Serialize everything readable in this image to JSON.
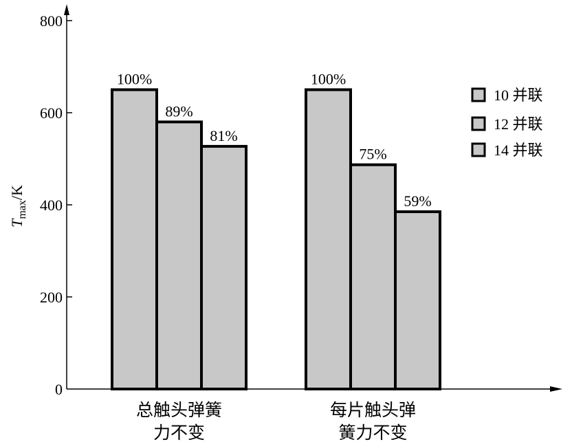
{
  "chart_data": {
    "type": "bar",
    "title": "",
    "xlabel": "",
    "ylabel": {
      "symbol": "T",
      "subscript": "max",
      "unit": "/K"
    },
    "ylim": [
      0,
      800
    ],
    "yticks": [
      "0",
      "200",
      "400",
      "600",
      "800"
    ],
    "grid": false,
    "legend_position": "right",
    "categories": [
      [
        "总触头弹簧",
        "力不变"
      ],
      [
        "每片触头弹",
        "簧力不变"
      ]
    ],
    "series": [
      {
        "name": "10 并联",
        "values": [
          650,
          650
        ],
        "labels": [
          "100%",
          "100%"
        ]
      },
      {
        "name": "12 并联",
        "values": [
          580,
          487
        ],
        "labels": [
          "89%",
          "75%"
        ]
      },
      {
        "name": "14 并联",
        "values": [
          527,
          385
        ],
        "labels": [
          "81%",
          "59%"
        ]
      }
    ],
    "bar_color": "#c8c8c8"
  }
}
